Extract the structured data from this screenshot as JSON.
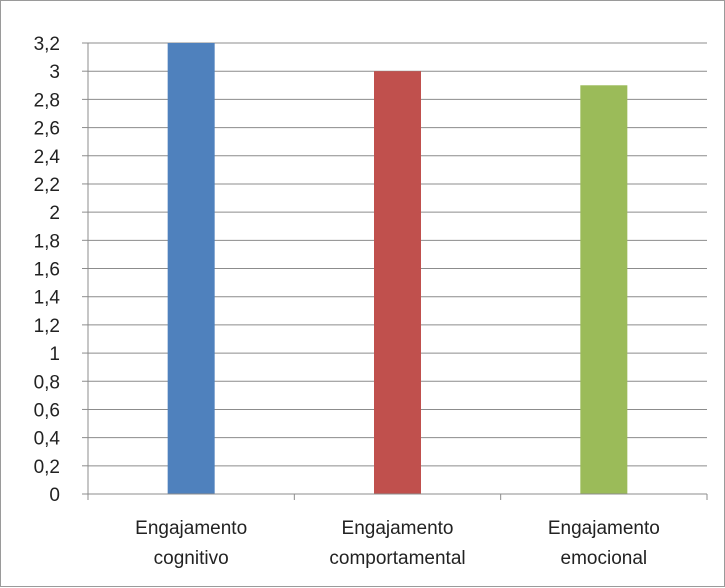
{
  "chart_data": {
    "type": "bar",
    "categories": [
      [
        "Engajamento",
        "cognitivo"
      ],
      [
        "Engajamento",
        "comportamental"
      ],
      [
        "Engajamento",
        "emocional"
      ]
    ],
    "values": [
      3.2,
      3.0,
      2.9
    ],
    "colors": [
      "#4f81bd",
      "#c0504d",
      "#9bbb59"
    ],
    "ylim": [
      0,
      3.2
    ],
    "yticks": [
      "0",
      "0,2",
      "0,4",
      "0,6",
      "0,8",
      "1",
      "1,2",
      "1,4",
      "1,6",
      "1,8",
      "2",
      "2,2",
      "2,4",
      "2,6",
      "2,8",
      "3",
      "3,2"
    ],
    "ytick_values": [
      0,
      0.2,
      0.4,
      0.6,
      0.8,
      1.0,
      1.2,
      1.4,
      1.6,
      1.8,
      2.0,
      2.2,
      2.4,
      2.6,
      2.8,
      3.0,
      3.2
    ],
    "grid": true,
    "legend": "none",
    "title": "",
    "xlabel": "",
    "ylabel": ""
  }
}
